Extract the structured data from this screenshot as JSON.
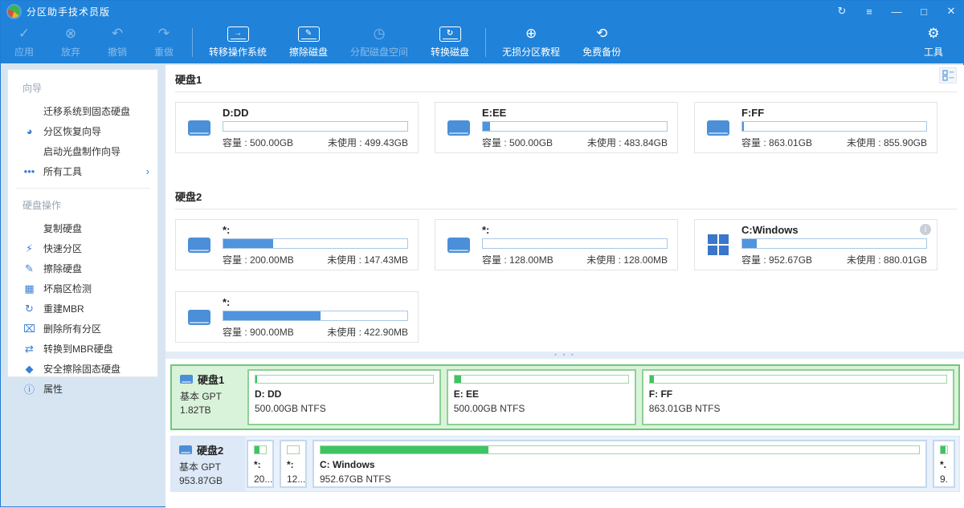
{
  "titlebar": {
    "title": "分区助手技术员版",
    "controls": {
      "refresh": "↻",
      "menu": "≡",
      "minimize": "—",
      "maximize": "□",
      "close": "✕"
    }
  },
  "toolbar": {
    "apply": "应用",
    "discard": "放弃",
    "undo": "撤销",
    "redo": "重做",
    "migrate_os": "转移操作系统",
    "wipe_disk": "擦除磁盘",
    "allocate_space": "分配磁盘空间",
    "convert_disk": "转换磁盘",
    "partition_tutorial": "无损分区教程",
    "free_backup": "免费备份",
    "tools": "工具"
  },
  "sidebar": {
    "wizards": {
      "title": "向导",
      "migrate_to_ssd": "迁移系统到固态硬盘",
      "partition_recovery": "分区恢复向导",
      "bootable_cd": "启动光盘制作向导",
      "all_tools": "所有工具",
      "chevron": "›"
    },
    "disk_ops": {
      "title": "硬盘操作",
      "copy_disk": "复制硬盘",
      "quick_partition": "快速分区",
      "wipe_disk": "擦除硬盘",
      "bad_sector_check": "坏扇区检测",
      "rebuild_mbr": "重建MBR",
      "delete_all_partitions": "删除所有分区",
      "convert_to_mbr": "转换到MBR硬盘",
      "secure_erase_ssd": "安全擦除固态硬盘",
      "properties": "属性"
    }
  },
  "main": {
    "capacity_label": "容量 :",
    "unused_label": "未使用 :",
    "disk1": {
      "name": "硬盘1",
      "p0": {
        "label": "D:DD",
        "capacity": "500.00GB",
        "unused": "499.43GB",
        "fill": 0
      },
      "p1": {
        "label": "E:EE",
        "capacity": "500.00GB",
        "unused": "483.84GB",
        "fill": 4
      },
      "p2": {
        "label": "F:FF",
        "capacity": "863.01GB",
        "unused": "855.90GB",
        "fill": 1
      }
    },
    "disk2": {
      "name": "硬盘2",
      "p0": {
        "label": "*:",
        "capacity": "200.00MB",
        "unused": "147.43MB",
        "fill": 27
      },
      "p1": {
        "label": "*:",
        "capacity": "128.00MB",
        "unused": "128.00MB",
        "fill": 0
      },
      "p2": {
        "label": "C:Windows",
        "capacity": "952.67GB",
        "unused": "880.01GB",
        "fill": 8,
        "info": "i"
      },
      "p3": {
        "label": "*:",
        "capacity": "900.00MB",
        "unused": "422.90MB",
        "fill": 53
      }
    }
  },
  "bottom": {
    "disk1": {
      "name": "硬盘1",
      "type": "基本 GPT",
      "size": "1.82TB",
      "p0": {
        "label": "D: DD",
        "detail": "500.00GB NTFS",
        "fill": 1
      },
      "p1": {
        "label": "E: EE",
        "detail": "500.00GB NTFS",
        "fill": 4
      },
      "p2": {
        "label": "F: FF",
        "detail": "863.01GB NTFS",
        "fill": 1.5
      }
    },
    "disk2": {
      "name": "硬盘2",
      "type": "基本 GPT",
      "size": "953.87GB",
      "p0": {
        "label": "*:",
        "detail": "20...",
        "fill": 40
      },
      "p1": {
        "label": "*:",
        "detail": "12...",
        "fill": 0
      },
      "p2": {
        "label": "C: Windows",
        "detail": "952.67GB NTFS",
        "fill": 28
      },
      "p3": {
        "label": "*.",
        "detail": "9.",
        "fill": 75
      }
    }
  },
  "splitter_dots": "▪ ▪ ▪"
}
